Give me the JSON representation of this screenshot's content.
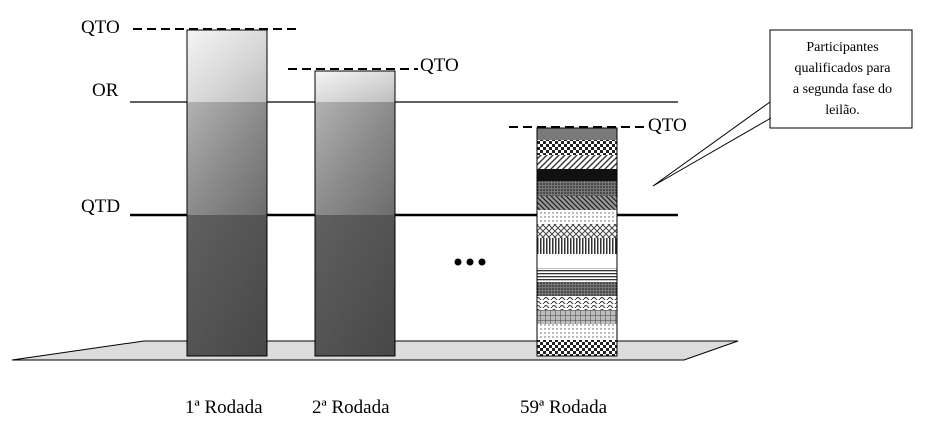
{
  "labels": {
    "qto": "QTO",
    "or": "OR",
    "qtd": "QTD",
    "ellipsis": "•••"
  },
  "callout": {
    "lines": [
      "Participantes",
      "qualificados para",
      "a segunda fase do",
      "leilão."
    ]
  },
  "rounds": [
    "1ª Rodada",
    "2ª Rodada",
    "59ª Rodada"
  ]
}
